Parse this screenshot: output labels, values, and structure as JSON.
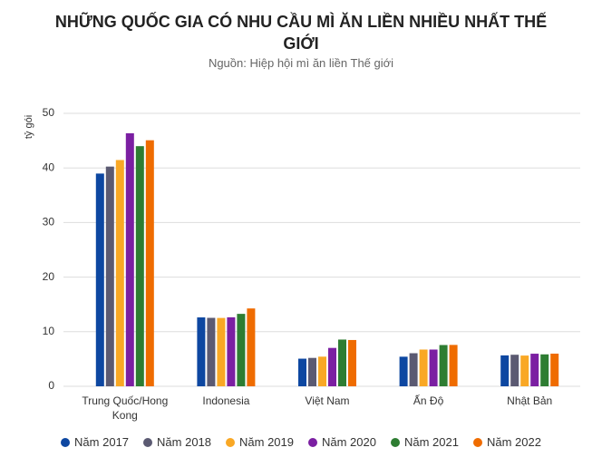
{
  "chart_data": {
    "type": "bar",
    "title": "NHỮNG QUỐC GIA CÓ NHU CẦU MÌ ĂN LIỀN NHIỀU NHẤT THẾ GIỚI",
    "subtitle": "Nguồn: Hiệp hội mì ăn liền Thế giới",
    "y_label": "tỷ gói",
    "categories": [
      "Trung Quốc/Hong Kong",
      "Indonesia",
      "Việt Nam",
      "Ấn Độ",
      "Nhật Bản"
    ],
    "series": [
      {
        "name": "Năm 2017",
        "color": "#0d47a1",
        "values": [
          38.97,
          12.62,
          5.06,
          5.42,
          5.66
        ]
      },
      {
        "name": "Năm 2018",
        "color": "#5b5a72",
        "values": [
          40.25,
          12.54,
          5.2,
          6.06,
          5.78
        ]
      },
      {
        "name": "Năm 2019",
        "color": "#f9a825",
        "values": [
          41.45,
          12.52,
          5.43,
          6.73,
          5.63
        ]
      },
      {
        "name": "Năm 2020",
        "color": "#7b1fa2",
        "values": [
          46.35,
          12.64,
          7.03,
          6.73,
          5.97
        ]
      },
      {
        "name": "Năm 2021",
        "color": "#2e7d32",
        "values": [
          43.99,
          13.27,
          8.56,
          7.56,
          5.85
        ]
      },
      {
        "name": "Năm 2022",
        "color": "#ef6c00",
        "values": [
          45.07,
          14.26,
          8.48,
          7.58,
          5.98
        ]
      }
    ],
    "ylim": [
      0,
      50
    ],
    "yticks": [
      0,
      10,
      20,
      30,
      40,
      50
    ],
    "grid": true,
    "legend": "bottom"
  }
}
